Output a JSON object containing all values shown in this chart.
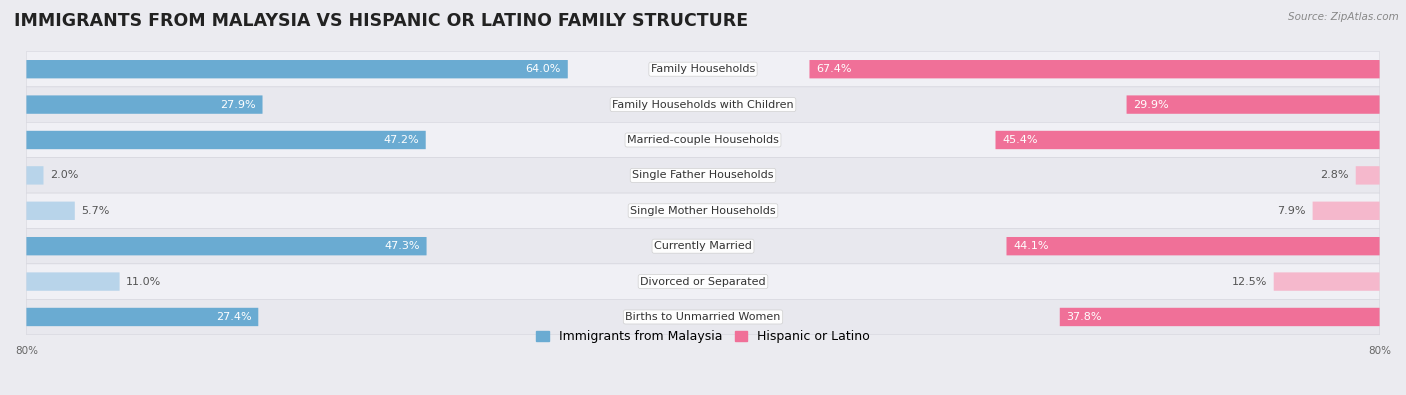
{
  "title": "IMMIGRANTS FROM MALAYSIA VS HISPANIC OR LATINO FAMILY STRUCTURE",
  "source": "Source: ZipAtlas.com",
  "categories": [
    "Family Households",
    "Family Households with Children",
    "Married-couple Households",
    "Single Father Households",
    "Single Mother Households",
    "Currently Married",
    "Divorced or Separated",
    "Births to Unmarried Women"
  ],
  "malaysia_values": [
    64.0,
    27.9,
    47.2,
    2.0,
    5.7,
    47.3,
    11.0,
    27.4
  ],
  "hispanic_values": [
    67.4,
    29.9,
    45.4,
    2.8,
    7.9,
    44.1,
    12.5,
    37.8
  ],
  "malaysia_color_strong": "#6aabd2",
  "malaysia_color_light": "#b8d4ea",
  "hispanic_color_strong": "#f07098",
  "hispanic_color_light": "#f5b8cc",
  "strong_threshold": 20.0,
  "x_max": 80.0,
  "label_font_size": 8.0,
  "title_font_size": 12.5,
  "legend_font_size": 9.0,
  "bg_color": "#ebebf0",
  "row_bg_even": "#f0f0f5",
  "row_bg_odd": "#e8e8ee",
  "row_border_color": "#d5d5dd"
}
